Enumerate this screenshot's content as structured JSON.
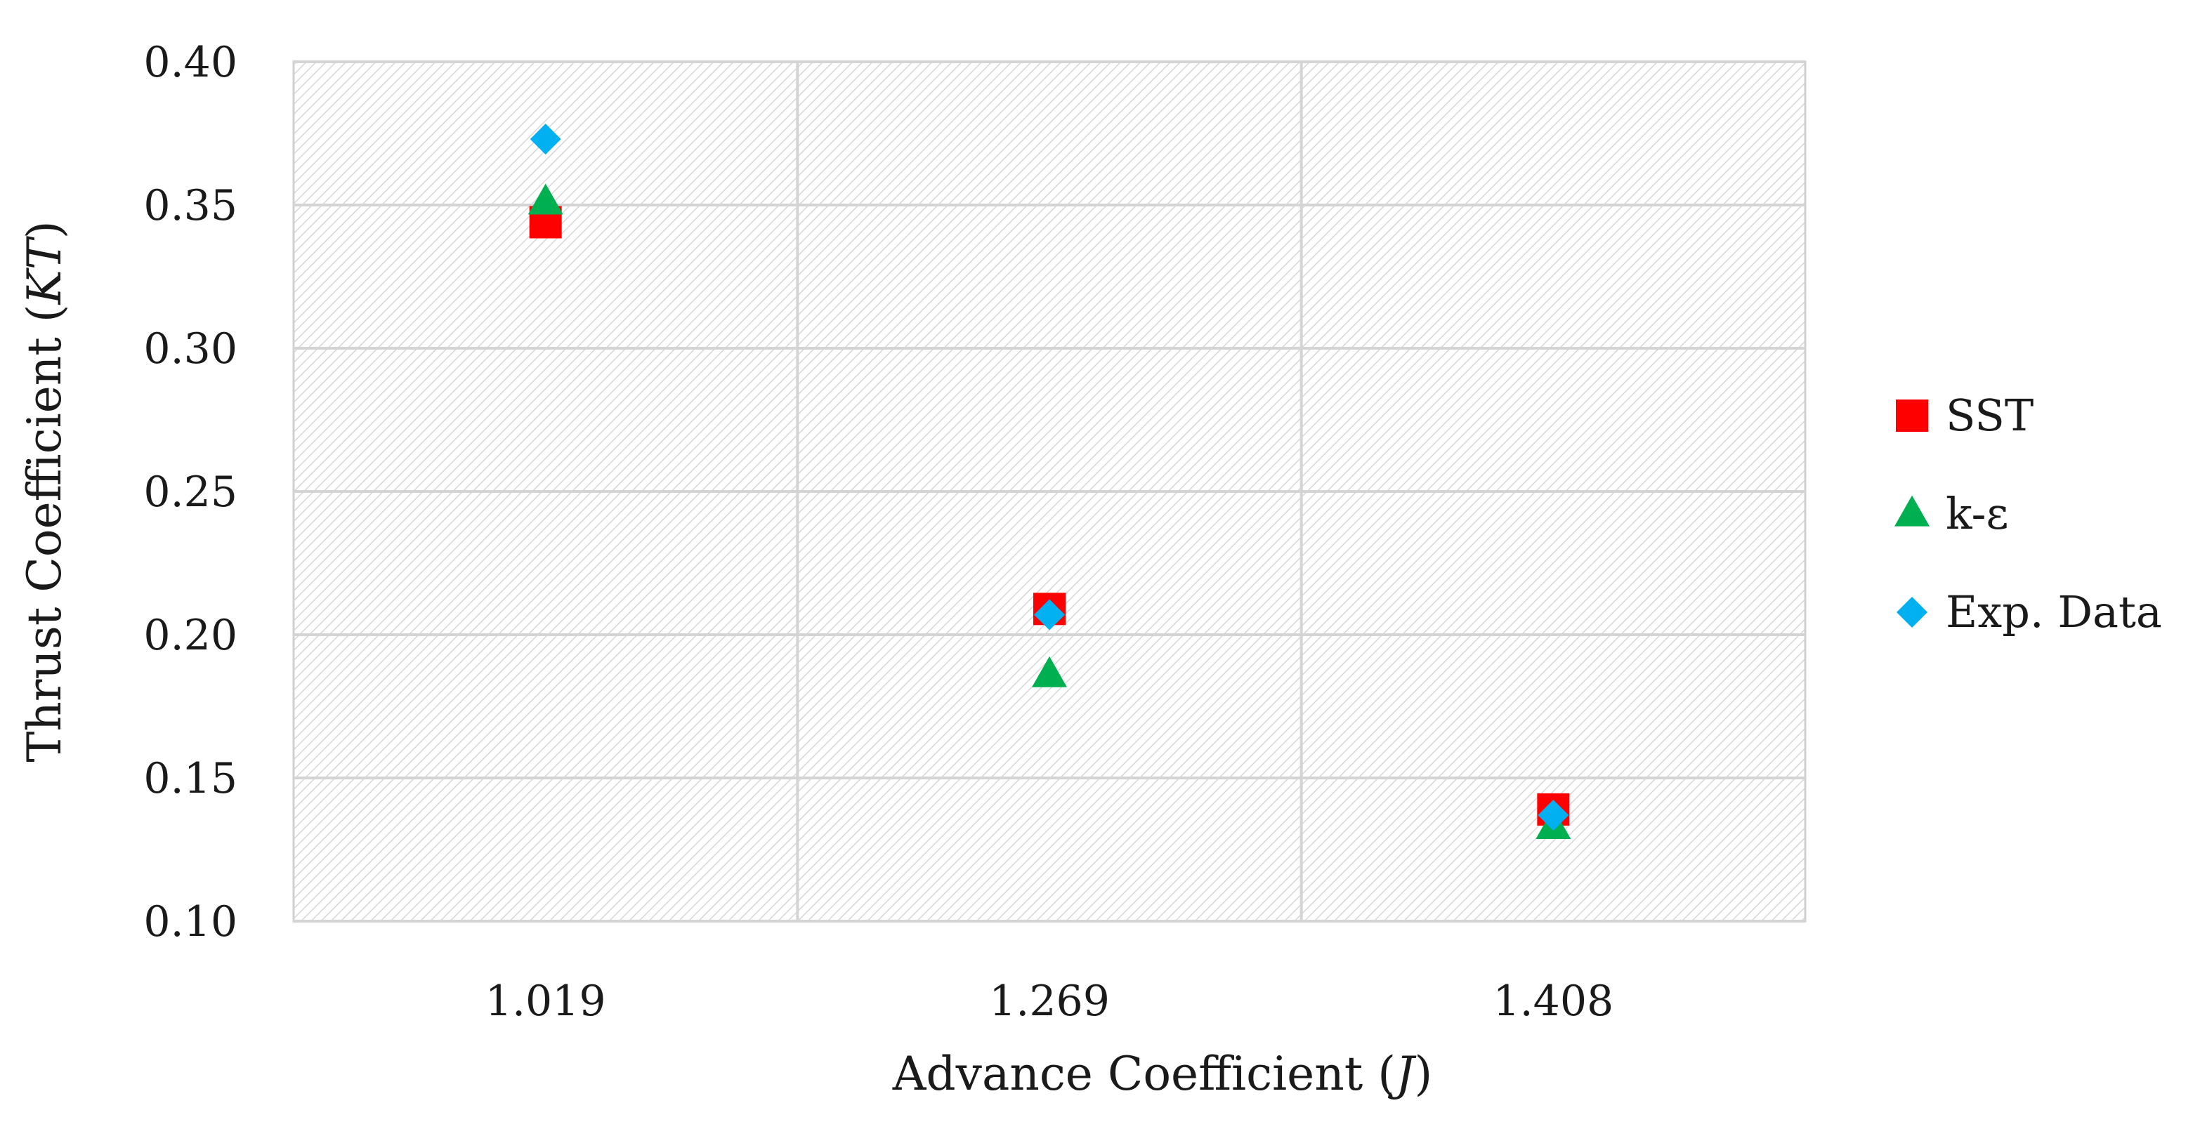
{
  "chart_data": {
    "type": "scatter",
    "title": "",
    "xlabel": "Advance Coefficient",
    "xlabel_symbol": "J",
    "ylabel": "Thrust Coefficient",
    "ylabel_symbol": "KT",
    "categories": [
      "1.019",
      "1.269",
      "1.408"
    ],
    "y_ticks": [
      "0.10",
      "0.15",
      "0.20",
      "0.25",
      "0.30",
      "0.35",
      "0.40"
    ],
    "ylim": [
      0.1,
      0.4
    ],
    "grid": true,
    "legend_position": "right",
    "series": [
      {
        "name": "SST",
        "marker": "square",
        "color": "#ff0000",
        "values": [
          0.344,
          0.209,
          0.139
        ]
      },
      {
        "name": "k-ε",
        "marker": "triangle",
        "color": "#00b050",
        "values": [
          0.351,
          0.186,
          0.133
        ]
      },
      {
        "name": "Exp. Data",
        "marker": "diamond",
        "color": "#00b0f0",
        "values": [
          0.373,
          0.207,
          0.137
        ]
      }
    ]
  }
}
